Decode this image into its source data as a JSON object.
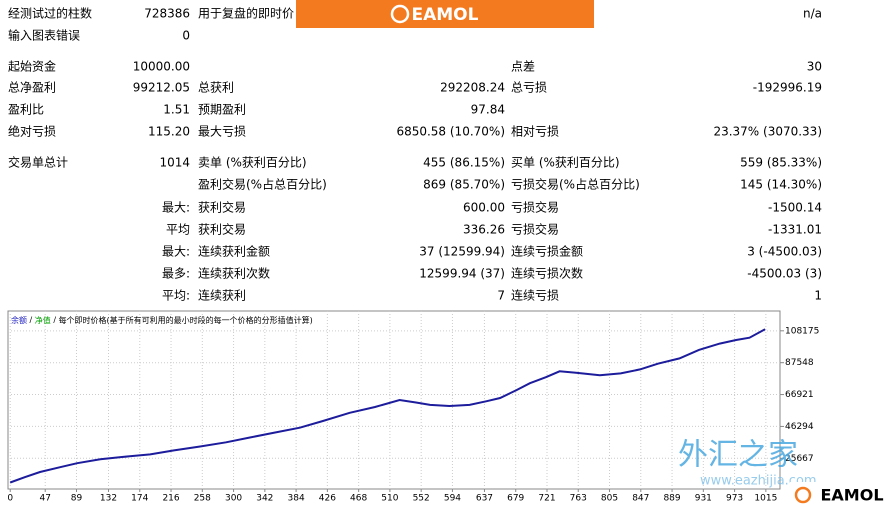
{
  "report": {
    "rows": [
      [
        "经测试过的柱数",
        "728386",
        "用于复盘的即时价",
        null,
        null,
        "n/a"
      ],
      [
        "输入图表错误",
        "0",
        null,
        null,
        null,
        null
      ],
      [
        "起始资金",
        "10000.00",
        null,
        null,
        "点差",
        "30"
      ],
      [
        "总净盈利",
        "99212.05",
        "总获利",
        "292208.24",
        "总亏损",
        "-192996.19"
      ],
      [
        "盈利比",
        "1.51",
        "预期盈利",
        "97.84",
        null,
        null
      ],
      [
        "绝对亏损",
        "115.20",
        "最大亏损",
        "6850.58 (10.70%)",
        "相对亏损",
        "23.37% (3070.33)"
      ],
      [
        "交易单总计",
        "1014",
        "卖单 (%获利百分比)",
        "455 (86.15%)",
        "买单 (%获利百分比)",
        "559 (85.33%)"
      ],
      [
        null,
        null,
        "盈利交易(%占总百分比)",
        "869 (85.70%)",
        "亏损交易(%占总百分比)",
        "145 (14.30%)"
      ],
      [
        null,
        "最大:",
        "获利交易",
        "600.00",
        "亏损交易",
        "-1500.14"
      ],
      [
        null,
        "平均",
        "获利交易",
        "336.26",
        "亏损交易",
        "-1331.01"
      ],
      [
        null,
        "最大:",
        "连续获利金额",
        "37 (12599.94)",
        "连续亏损金额",
        "3 (-4500.03)"
      ],
      [
        null,
        "最多:",
        "连续获利次数",
        "12599.94 (37)",
        "连续亏损次数",
        "-4500.03 (3)"
      ],
      [
        null,
        "平均:",
        "连续获利",
        "7",
        "连续亏损",
        "1"
      ]
    ]
  },
  "watermark": {
    "brand": "EAMOL",
    "site_name": "外汇之家",
    "site_url": "www.eazhijia.com"
  },
  "chart_data": {
    "type": "line",
    "legend": [
      {
        "name": "余额",
        "color": "#2020c0"
      },
      {
        "name": "净值",
        "color": "#00a000"
      }
    ],
    "note": "每个即时价格(基于所有可利用的最小时段的每一个价格的分形插值计算)",
    "x": [
      0,
      20,
      40,
      67,
      90,
      121,
      150,
      188,
      220,
      255,
      290,
      322,
      355,
      389,
      420,
      456,
      490,
      523,
      545,
      564,
      590,
      617,
      640,
      658,
      680,
      698,
      720,
      738,
      760,
      792,
      820,
      846,
      870,
      899,
      925,
      953,
      975,
      993,
      1014
    ],
    "values": [
      10000,
      13500,
      16800,
      19900,
      22500,
      25000,
      26500,
      28200,
      30800,
      33300,
      36000,
      39100,
      42300,
      45500,
      49800,
      55100,
      58900,
      63400,
      61800,
      60200,
      59500,
      60200,
      62600,
      64700,
      69800,
      74300,
      78200,
      82000,
      81100,
      79400,
      80600,
      83200,
      86900,
      90300,
      95800,
      99900,
      102200,
      103700,
      109212
    ],
    "color": "#1c1c9c",
    "xlim": [
      -3,
      1034
    ],
    "ylim": [
      5800,
      121000
    ],
    "xticks": [
      0,
      47,
      89,
      132,
      174,
      216,
      258,
      300,
      342,
      384,
      426,
      468,
      510,
      552,
      594,
      637,
      679,
      721,
      763,
      805,
      847,
      889,
      931,
      973,
      1015
    ],
    "yticks": [
      25667,
      46294,
      66921,
      87548,
      108175
    ]
  }
}
